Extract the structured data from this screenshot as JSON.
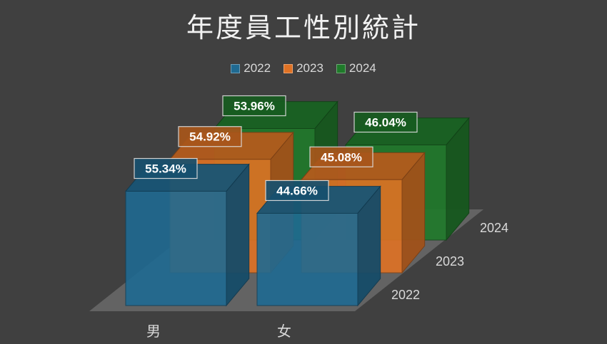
{
  "title": "年度員工性別統計",
  "colors": {
    "2022": "#1f6a92",
    "2023": "#e07224",
    "2024": "#1f7a2a",
    "background": "#404040",
    "floor": "#6a6a6a"
  },
  "legend": [
    "2022",
    "2023",
    "2024"
  ],
  "chart_data": {
    "type": "bar",
    "subtype": "3d-clustered",
    "categories": [
      "男",
      "女"
    ],
    "depth_labels": [
      "2022",
      "2023",
      "2024"
    ],
    "series": [
      {
        "name": "2022",
        "values": [
          55.34,
          44.66
        ],
        "labels": [
          "55.34%",
          "44.66%"
        ]
      },
      {
        "name": "2023",
        "values": [
          54.92,
          45.08
        ],
        "labels": [
          "54.92%",
          "45.08%"
        ]
      },
      {
        "name": "2024",
        "values": [
          53.96,
          46.04
        ],
        "labels": [
          "53.96%",
          "46.04%"
        ]
      }
    ],
    "legend_position": "top",
    "grid": false
  }
}
